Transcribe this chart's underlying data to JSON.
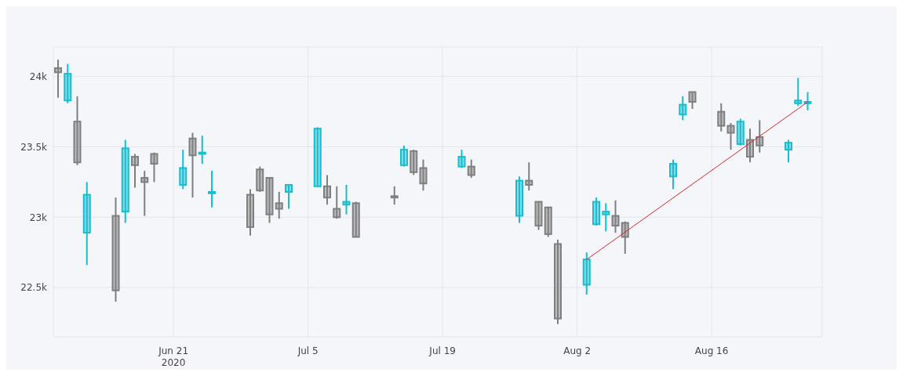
{
  "chart_data": {
    "type": "candlestick",
    "x": [
      "2020-06-09",
      "2020-06-10",
      "2020-06-11",
      "2020-06-12",
      "2020-06-15",
      "2020-06-16",
      "2020-06-17",
      "2020-06-18",
      "2020-06-19",
      "2020-06-22",
      "2020-06-23",
      "2020-06-24",
      "2020-06-25",
      "2020-06-29",
      "2020-06-30",
      "2020-07-01",
      "2020-07-02",
      "2020-07-03",
      "2020-07-06",
      "2020-07-07",
      "2020-07-08",
      "2020-07-09",
      "2020-07-10",
      "2020-07-14",
      "2020-07-15",
      "2020-07-16",
      "2020-07-17",
      "2020-07-21",
      "2020-07-22",
      "2020-07-27",
      "2020-07-28",
      "2020-07-29",
      "2020-07-30",
      "2020-07-31",
      "2020-08-03",
      "2020-08-04",
      "2020-08-05",
      "2020-08-06",
      "2020-08-07",
      "2020-08-12",
      "2020-08-13",
      "2020-08-14",
      "2020-08-17",
      "2020-08-18",
      "2020-08-19",
      "2020-08-20",
      "2020-08-21",
      "2020-08-24",
      "2020-08-25",
      "2020-08-26"
    ],
    "ohlc": [
      [
        24060,
        24120,
        23850,
        24030
      ],
      [
        23830,
        24090,
        23810,
        24020
      ],
      [
        23680,
        23860,
        23370,
        23390
      ],
      [
        22890,
        23250,
        22660,
        23160
      ],
      [
        23010,
        23140,
        22400,
        22480
      ],
      [
        23040,
        23550,
        22960,
        23490
      ],
      [
        23430,
        23450,
        23210,
        23370
      ],
      [
        23280,
        23330,
        23010,
        23250
      ],
      [
        23450,
        23460,
        23250,
        23380
      ],
      [
        23230,
        23480,
        23200,
        23350
      ],
      [
        23560,
        23600,
        23140,
        23440
      ],
      [
        23450,
        23580,
        23380,
        23460
      ],
      [
        23170,
        23330,
        23070,
        23180
      ],
      [
        23160,
        23200,
        22870,
        22930
      ],
      [
        23340,
        23360,
        23180,
        23190
      ],
      [
        23280,
        23280,
        22960,
        23020
      ],
      [
        23100,
        23180,
        22990,
        23060
      ],
      [
        23180,
        23230,
        23060,
        23230
      ],
      [
        23220,
        23640,
        23220,
        23630
      ],
      [
        23220,
        23300,
        23090,
        23140
      ],
      [
        23060,
        23220,
        22990,
        23000
      ],
      [
        23090,
        23230,
        23020,
        23110
      ],
      [
        23100,
        23110,
        22860,
        22860
      ],
      [
        23150,
        23220,
        23090,
        23140
      ],
      [
        23370,
        23510,
        23360,
        23480
      ],
      [
        23470,
        23480,
        23300,
        23320
      ],
      [
        23350,
        23410,
        23190,
        23240
      ],
      [
        23360,
        23480,
        23350,
        23430
      ],
      [
        23360,
        23410,
        23280,
        23300
      ],
      [
        23010,
        23290,
        22960,
        23260
      ],
      [
        23260,
        23390,
        23190,
        23230
      ],
      [
        23110,
        23110,
        22910,
        22940
      ],
      [
        23070,
        23070,
        22860,
        22880
      ],
      [
        22810,
        22840,
        22240,
        22280
      ],
      [
        22520,
        22750,
        22450,
        22700
      ],
      [
        22950,
        23140,
        22940,
        23110
      ],
      [
        23020,
        23100,
        22900,
        23040
      ],
      [
        23010,
        23120,
        22890,
        22940
      ],
      [
        22960,
        22970,
        22740,
        22860
      ],
      [
        23290,
        23410,
        23200,
        23380
      ],
      [
        23730,
        23860,
        23690,
        23800
      ],
      [
        23890,
        23890,
        23770,
        23820
      ],
      [
        23750,
        23810,
        23610,
        23650
      ],
      [
        23650,
        23670,
        23480,
        23600
      ],
      [
        23520,
        23700,
        23510,
        23680
      ],
      [
        23550,
        23630,
        23390,
        23430
      ],
      [
        23570,
        23690,
        23460,
        23510
      ],
      [
        23480,
        23550,
        23390,
        23530
      ],
      [
        23810,
        23990,
        23790,
        23830
      ],
      [
        23810,
        23890,
        23760,
        23820
      ]
    ],
    "colors": [
      "#7f7f7f",
      "#17becf",
      "#7f7f7f",
      "#17becf",
      "#7f7f7f",
      "#17becf",
      "#7f7f7f",
      "#7f7f7f",
      "#7f7f7f",
      "#17becf",
      "#7f7f7f",
      "#17becf",
      "#17becf",
      "#7f7f7f",
      "#7f7f7f",
      "#7f7f7f",
      "#7f7f7f",
      "#17becf",
      "#17becf",
      "#7f7f7f",
      "#7f7f7f",
      "#17becf",
      "#7f7f7f",
      "#7f7f7f",
      "#17becf",
      "#7f7f7f",
      "#7f7f7f",
      "#17becf",
      "#7f7f7f",
      "#17becf",
      "#7f7f7f",
      "#7f7f7f",
      "#7f7f7f",
      "#7f7f7f",
      "#17becf",
      "#17becf",
      "#17becf",
      "#7f7f7f",
      "#7f7f7f",
      "#17becf",
      "#17becf",
      "#7f7f7f",
      "#7f7f7f",
      "#7f7f7f",
      "#17becf",
      "#7f7f7f",
      "#7f7f7f",
      "#17becf",
      "#17becf",
      "#17becf"
    ],
    "series": [
      {
        "type": "line",
        "x": [
          "2020-08-03",
          "2020-08-26"
        ],
        "values": [
          22700,
          23820
        ],
        "color": "#d62728"
      }
    ],
    "xlim": [
      "2020-06-08T12:00",
      "2020-08-27T12:00"
    ],
    "xticks": [
      {
        "value": "2020-06-21",
        "label": "Jun 21\n2020"
      },
      {
        "value": "2020-07-05",
        "label": "Jul 5"
      },
      {
        "value": "2020-07-19",
        "label": "Jul 19"
      },
      {
        "value": "2020-08-02",
        "label": "Aug 2"
      },
      {
        "value": "2020-08-16",
        "label": "Aug 16"
      }
    ],
    "ylim": [
      22150,
      24210
    ],
    "yticks": [
      {
        "value": 22500,
        "label": "22.5k"
      },
      {
        "value": 23000,
        "label": "23k"
      },
      {
        "value": 23500,
        "label": "23.5k"
      },
      {
        "value": 24000,
        "label": "24k"
      }
    ],
    "grid": true
  }
}
